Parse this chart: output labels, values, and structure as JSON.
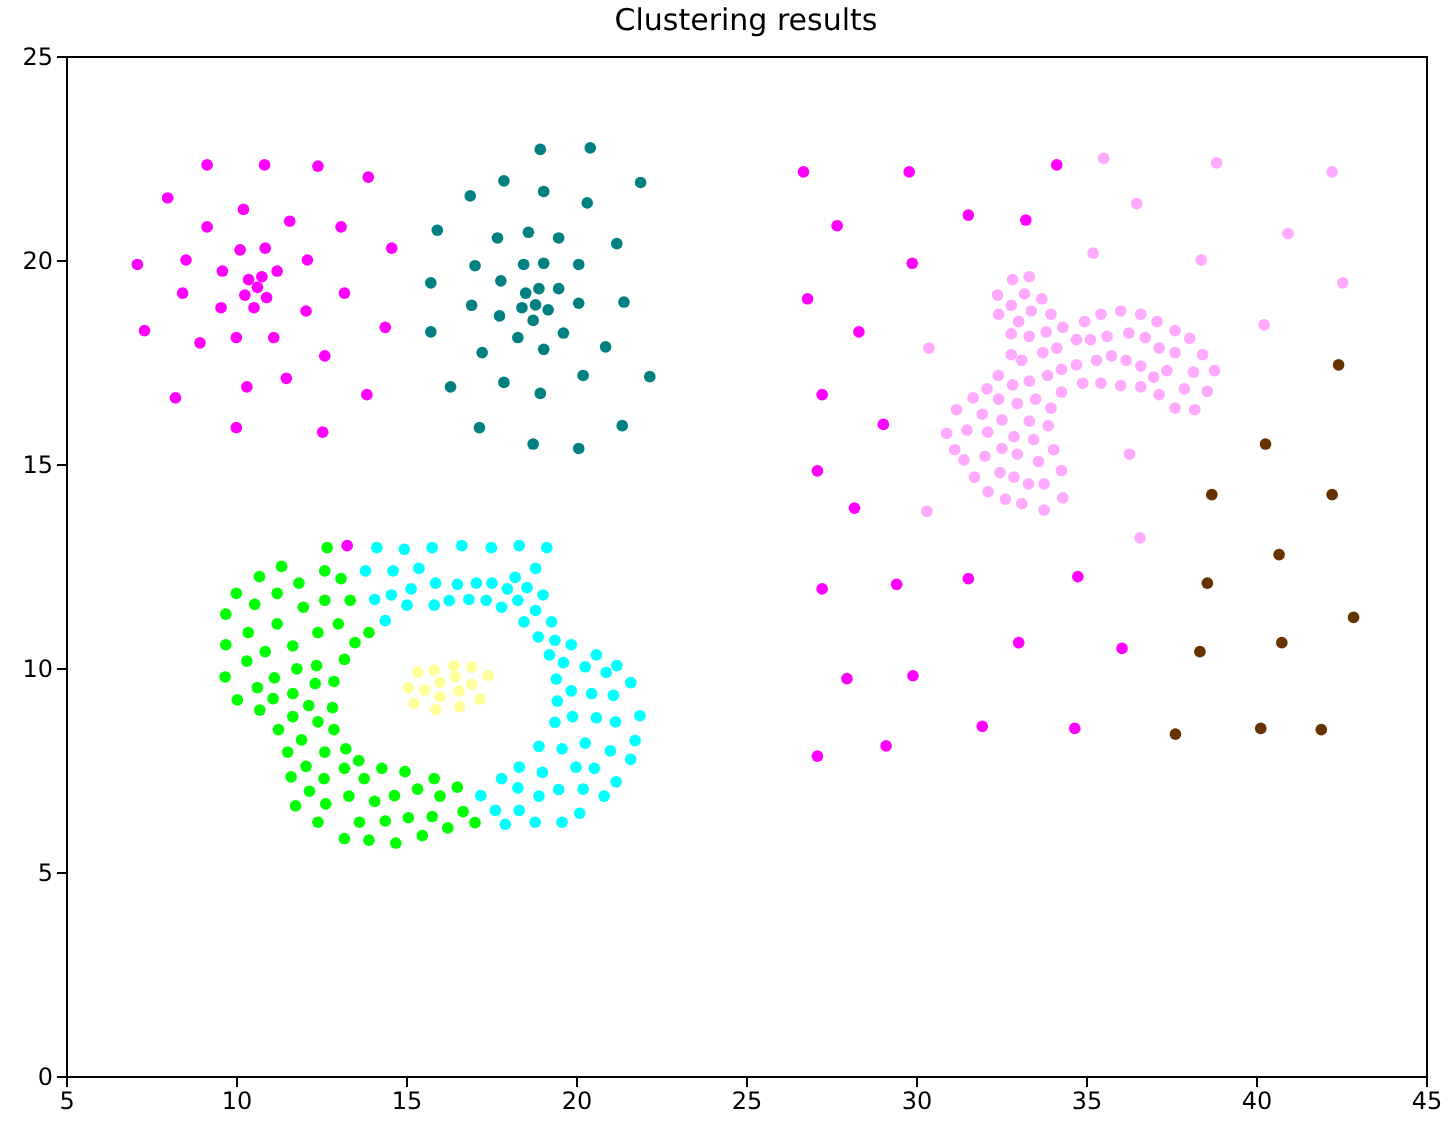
{
  "chart_data": {
    "type": "scatter",
    "title": "Clustering results",
    "xlim": [
      5,
      45
    ],
    "xticks": [
      5,
      10,
      15,
      20,
      25,
      30,
      35,
      40,
      45
    ],
    "ylim": [
      0,
      25
    ],
    "yticks": [
      0,
      5,
      10,
      15,
      20,
      25
    ],
    "grid": false,
    "legend": false,
    "marker": "circle",
    "series": [
      {
        "color": "#ff00ff",
        "x": [
          9.15,
          10.84,
          12.41,
          13.89,
          7.99,
          10.22,
          9.15,
          11.58,
          13.09,
          7.1,
          8.53,
          10.12,
          10.86,
          12.1,
          14.58,
          9.6,
          10.37,
          10.76,
          11.21,
          8.43,
          10.26,
          10.63,
          10.9,
          13.19,
          9.56,
          10.53,
          12.06,
          7.31,
          8.94,
          10.01,
          11.11,
          14.39,
          12.61,
          10.32,
          11.48,
          8.22,
          13.85,
          10.01,
          12.55,
          13.27
        ],
        "values": [
          22.33,
          22.33,
          22.3,
          22.03,
          21.52,
          21.24,
          20.81,
          20.95,
          20.81,
          19.89,
          20.0,
          20.25,
          20.29,
          20.0,
          20.29,
          19.73,
          19.52,
          19.59,
          19.73,
          19.19,
          19.14,
          19.33,
          19.08,
          19.19,
          18.83,
          18.83,
          18.75,
          18.27,
          17.97,
          18.1,
          18.1,
          18.35,
          17.65,
          16.89,
          17.1,
          16.62,
          16.7,
          15.89,
          15.78,
          13.0
        ]
      },
      {
        "color": "#008080",
        "x": [
          18.95,
          20.42,
          17.88,
          19.05,
          16.89,
          21.9,
          20.33,
          15.92,
          17.69,
          18.6,
          19.49,
          21.2,
          17.03,
          18.46,
          19.05,
          20.08,
          15.73,
          17.79,
          18.52,
          18.91,
          19.49,
          16.93,
          18.41,
          18.81,
          19.18,
          20.08,
          21.41,
          17.75,
          18.74,
          15.73,
          18.29,
          19.63,
          17.24,
          19.05,
          20.87,
          16.31,
          17.88,
          18.95,
          20.21,
          22.17,
          17.16,
          18.74,
          20.08,
          21.36
        ],
        "values": [
          22.71,
          22.75,
          21.94,
          21.68,
          21.57,
          21.9,
          21.4,
          20.73,
          20.54,
          20.68,
          20.54,
          20.4,
          19.86,
          19.89,
          19.92,
          19.89,
          19.44,
          19.49,
          19.19,
          19.3,
          19.3,
          18.89,
          18.83,
          18.9,
          18.78,
          18.94,
          18.97,
          18.63,
          18.52,
          18.24,
          18.1,
          18.21,
          17.73,
          17.81,
          17.87,
          16.89,
          17.0,
          16.73,
          17.17,
          17.14,
          15.89,
          15.49,
          15.38,
          15.94
        ]
      },
      {
        "color": "#00ff00",
        "x": [
          12.68,
          11.34,
          12.61,
          13.09,
          10.69,
          10.01,
          11.21,
          11.85,
          10.55,
          11.98,
          12.61,
          13.36,
          9.7,
          10.36,
          11.21,
          12.41,
          13.01,
          13.91,
          9.7,
          10.86,
          11.67,
          13.5,
          10.32,
          13.19,
          9.68,
          10.63,
          11.13,
          11.79,
          12.37,
          12.33,
          12.88,
          10.04,
          10.7,
          11.09,
          11.67,
          12.14,
          12.84,
          11.25,
          11.67,
          12.41,
          12.88,
          11.93,
          11.52,
          12.61,
          13.23,
          13.61,
          14.29,
          14.97,
          12.06,
          13.19,
          13.77,
          11.62,
          12.59,
          15.83,
          12.16,
          13.32,
          14.66,
          15.34,
          16.0,
          16.51,
          11.75,
          12.64,
          14.08,
          16.68,
          13.63,
          14.39,
          15.07,
          15.77,
          16.23,
          17.03,
          12.41,
          13.19,
          13.91,
          14.7,
          15.48
        ],
        "values": [
          12.95,
          12.49,
          12.38,
          12.19,
          12.24,
          11.83,
          11.83,
          12.08,
          11.56,
          11.49,
          11.66,
          11.66,
          11.32,
          10.87,
          11.08,
          10.87,
          11.08,
          10.87,
          10.57,
          10.4,
          10.54,
          10.62,
          10.17,
          10.21,
          9.78,
          9.52,
          9.76,
          9.98,
          10.06,
          9.62,
          9.67,
          9.22,
          8.97,
          9.25,
          9.37,
          9.08,
          9.03,
          8.49,
          8.81,
          8.68,
          8.49,
          8.24,
          7.94,
          7.94,
          8.02,
          7.73,
          7.54,
          7.46,
          7.59,
          7.54,
          7.29,
          7.33,
          7.29,
          7.29,
          6.98,
          6.86,
          6.87,
          7.03,
          6.86,
          7.08,
          6.62,
          6.67,
          6.73,
          6.48,
          6.22,
          6.25,
          6.33,
          6.36,
          6.08,
          6.21,
          6.22,
          5.82,
          5.78,
          5.71,
          5.89
        ]
      },
      {
        "color": "#00ffff",
        "x": [
          14.14,
          14.95,
          15.77,
          16.64,
          17.51,
          18.33,
          19.14,
          13.81,
          14.62,
          15.38,
          18.81,
          14.08,
          14.57,
          15.15,
          15.87,
          16.51,
          17.07,
          17.53,
          17.98,
          18.21,
          18.56,
          19.03,
          15.03,
          15.83,
          16.27,
          16.85,
          17.36,
          17.81,
          18.29,
          18.81,
          14.39,
          18.47,
          19.28,
          18.89,
          19.38,
          19.86,
          19.22,
          19.63,
          20.27,
          20.6,
          20.89,
          21.2,
          21.61,
          19.42,
          19.86,
          20.46,
          21.1,
          19.45,
          19.9,
          20.6,
          21.16,
          21.88,
          19.38,
          18.91,
          19.59,
          20.27,
          21.01,
          21.74,
          21.61,
          20.0,
          20.54,
          21.18,
          19.01,
          18.33,
          17.81,
          18.29,
          18.91,
          19.49,
          20.21,
          20.83,
          17.2,
          17.63,
          18.33,
          20.11,
          17.92,
          18.8,
          19.59
        ],
        "values": [
          12.95,
          12.91,
          12.95,
          13.0,
          12.95,
          13.0,
          12.95,
          12.38,
          12.38,
          12.44,
          12.44,
          11.68,
          11.79,
          11.94,
          12.08,
          12.05,
          12.08,
          12.08,
          11.94,
          12.22,
          11.97,
          11.79,
          11.54,
          11.54,
          11.65,
          11.68,
          11.66,
          11.49,
          11.66,
          11.41,
          11.16,
          11.13,
          11.13,
          10.76,
          10.68,
          10.57,
          10.32,
          10.13,
          10.03,
          10.32,
          9.89,
          10.06,
          9.64,
          9.73,
          9.44,
          9.37,
          9.33,
          9.19,
          8.81,
          8.78,
          8.68,
          8.83,
          8.67,
          8.08,
          8.02,
          8.16,
          7.97,
          8.22,
          7.76,
          7.57,
          7.54,
          7.21,
          7.44,
          7.57,
          7.29,
          7.06,
          6.86,
          7.02,
          7.03,
          6.86,
          6.87,
          6.51,
          6.51,
          6.44,
          6.17,
          6.22,
          6.22
        ]
      },
      {
        "color": "#ffff99",
        "x": [
          15.34,
          15.83,
          16.41,
          16.93,
          17.42,
          15.07,
          15.55,
          16.0,
          16.45,
          16.93,
          16.56,
          16.0,
          15.24,
          15.87,
          16.58,
          17.18
        ],
        "values": [
          9.9,
          9.94,
          10.06,
          10.03,
          9.81,
          9.52,
          9.46,
          9.65,
          9.78,
          9.6,
          9.44,
          9.3,
          9.13,
          8.98,
          9.05,
          9.24
        ]
      },
      {
        "color": "#ff00ff",
        "x": [
          26.69,
          29.8,
          34.14,
          27.68,
          31.54,
          33.23,
          29.89,
          26.81,
          28.32,
          27.24,
          29.04,
          27.1,
          28.19,
          27.24,
          29.43,
          31.54,
          34.76,
          33.02,
          36.06,
          27.97,
          29.91,
          31.95,
          34.67,
          27.1,
          29.12
        ],
        "values": [
          22.16,
          22.16,
          22.33,
          20.84,
          21.1,
          20.98,
          19.92,
          19.05,
          18.24,
          16.7,
          15.97,
          14.83,
          13.92,
          11.94,
          12.05,
          12.19,
          12.24,
          10.62,
          10.48,
          9.74,
          9.81,
          8.57,
          8.52,
          7.84,
          8.09
        ]
      },
      {
        "color": "#ffaaff",
        "x": [
          35.52,
          36.49,
          35.21,
          30.38,
          30.32,
          36.28,
          36.59,
          32.84,
          33.33,
          32.4,
          33.19,
          33.7,
          32.8,
          33.39,
          32.43,
          33.97,
          33.02,
          34.32,
          35.44,
          36.02,
          36.61,
          37.09,
          32.8,
          33.33,
          33.83,
          34.96,
          34.72,
          35.13,
          35.62,
          36.26,
          36.74,
          37.15,
          32.8,
          33.11,
          33.73,
          34.14,
          32.42,
          32.84,
          33.33,
          33.87,
          34.28,
          34.72,
          35.31,
          35.75,
          36.18,
          36.61,
          36.99,
          37.38,
          32.09,
          31.68,
          31.19,
          32.43,
          32.98,
          33.52,
          33.97,
          34.28,
          34.9,
          35.44,
          36.02,
          36.61,
          37.15,
          31.95,
          32.53,
          33.33,
          33.89,
          30.9,
          31.5,
          32.11,
          32.88,
          33.46,
          31.14,
          31.41,
          32.03,
          32.53,
          32.98,
          33.6,
          34.05,
          31.72,
          32.47,
          32.88,
          33.31,
          33.77,
          34.28,
          32.12,
          32.63,
          33.11,
          33.77,
          34.32,
          38.84,
          42.24,
          40.94,
          38.39,
          42.55,
          40.24,
          37.62,
          38.05,
          37.62,
          38.43,
          38.16,
          38.78,
          37.89,
          38.57,
          37.62,
          38.2
        ],
        "values": [
          22.49,
          21.38,
          20.17,
          17.84,
          13.84,
          15.24,
          13.19,
          19.52,
          19.59,
          19.14,
          19.17,
          19.05,
          18.89,
          18.75,
          18.67,
          18.67,
          18.49,
          18.35,
          18.67,
          18.75,
          18.67,
          18.49,
          18.19,
          18.13,
          18.24,
          18.49,
          18.05,
          18.05,
          18.13,
          18.21,
          18.1,
          17.84,
          17.68,
          17.54,
          17.73,
          17.84,
          17.17,
          16.94,
          17.03,
          17.17,
          17.32,
          17.43,
          17.54,
          17.65,
          17.54,
          17.4,
          17.13,
          17.29,
          16.84,
          16.62,
          16.33,
          16.59,
          16.48,
          16.59,
          16.37,
          16.76,
          16.98,
          16.98,
          16.92,
          16.89,
          16.7,
          16.22,
          16.08,
          16.05,
          15.94,
          15.75,
          15.83,
          15.78,
          15.67,
          15.6,
          15.35,
          15.1,
          15.19,
          15.38,
          15.24,
          15.06,
          15.35,
          14.68,
          14.79,
          14.68,
          14.51,
          14.51,
          14.84,
          14.32,
          14.14,
          14.03,
          13.87,
          14.17,
          22.38,
          22.16,
          20.65,
          20.0,
          19.44,
          18.41,
          18.27,
          18.08,
          17.73,
          17.68,
          17.25,
          17.29,
          16.84,
          16.78,
          16.37,
          16.33
        ]
      },
      {
        "color": "#663300",
        "x": [
          40.68,
          38.57,
          42.87,
          38.35,
          40.76,
          37.63,
          40.14,
          41.92,
          42.43,
          40.28,
          38.7,
          42.24
        ],
        "values": [
          12.78,
          12.08,
          11.24,
          10.4,
          10.62,
          8.38,
          8.52,
          8.49,
          17.43,
          15.49,
          14.25,
          14.25
        ]
      }
    ]
  }
}
